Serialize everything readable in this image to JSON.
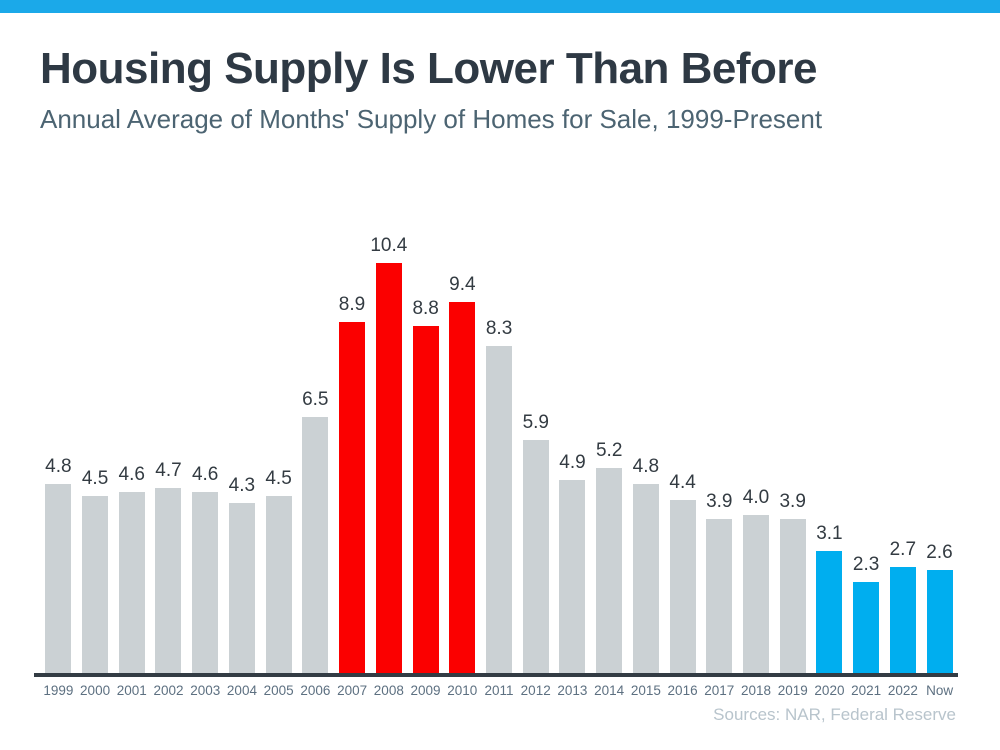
{
  "page": {
    "title": "Housing Supply Is Lower Than Before",
    "subtitle": "Annual Average of Months' Supply of Homes for Sale, 1999-Present",
    "source_note": "Sources: NAR, Federal Reserve"
  },
  "theme": {
    "top_strip_blue": "#1BA9E9",
    "bar_gray": "#CBD1D4",
    "bar_red": "#FB0000",
    "bar_blue": "#00AEEF",
    "axis_line_color": "#333C44",
    "title_color": "#2E3944",
    "subtitle_color": "#4C6472",
    "value_label_color": "#333B42",
    "tick_label_color": "#5D7081",
    "source_color": "#B8C4CC"
  },
  "chart_data": {
    "type": "bar",
    "title": "Housing Supply Is Lower Than Before",
    "subtitle": "Annual Average of Months' Supply of Homes for Sale, 1999-Present",
    "categories": [
      "1999",
      "2000",
      "2001",
      "2002",
      "2003",
      "2004",
      "2005",
      "2006",
      "2007",
      "2008",
      "2009",
      "2010",
      "2011",
      "2012",
      "2013",
      "2014",
      "2015",
      "2016",
      "2017",
      "2018",
      "2019",
      "2020",
      "2021",
      "2022",
      "Now"
    ],
    "values": [
      4.8,
      4.5,
      4.6,
      4.7,
      4.6,
      4.3,
      4.5,
      6.5,
      8.9,
      10.4,
      8.8,
      9.4,
      8.3,
      5.9,
      4.9,
      5.2,
      4.8,
      4.4,
      3.9,
      4.0,
      3.9,
      3.1,
      2.3,
      2.7,
      2.6
    ],
    "value_label_texts": [
      "4.8",
      "4.5",
      "4.6",
      "4.7",
      "4.6",
      "4.3",
      "4.5",
      "6.5",
      "8.9",
      "10.4",
      "8.8",
      "9.4",
      "8.3",
      "5.9",
      "4.9",
      "5.2",
      "4.8",
      "4.4",
      "3.9",
      "4.0",
      "3.9",
      "3.1",
      "2.3",
      "2.7",
      "2.6"
    ],
    "bar_color_keys": [
      "gray",
      "gray",
      "gray",
      "gray",
      "gray",
      "gray",
      "gray",
      "gray",
      "red",
      "red",
      "red",
      "red",
      "gray",
      "gray",
      "gray",
      "gray",
      "gray",
      "gray",
      "gray",
      "gray",
      "gray",
      "blue",
      "blue",
      "blue",
      "blue"
    ],
    "xlabel": "",
    "ylabel": "",
    "ylim": [
      0,
      10.4
    ],
    "grid": false,
    "legend": "none",
    "value_labels_shown": true,
    "source": "Sources: NAR, Federal Reserve"
  }
}
